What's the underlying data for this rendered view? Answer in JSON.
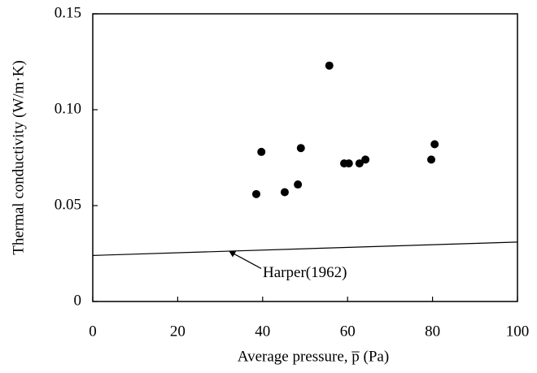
{
  "chart_data": {
    "type": "scatter",
    "xlabel": "Average pressure, p̅ (Pa)",
    "ylabel": "Thermal conductivity (W/m·K)",
    "x": [
      38.5,
      39.7,
      45.2,
      48.3,
      49.0,
      55.7,
      59.2,
      60.3,
      62.8,
      64.2,
      79.7,
      80.5
    ],
    "values": [
      0.056,
      0.078,
      0.057,
      0.061,
      0.08,
      0.123,
      0.072,
      0.072,
      0.072,
      0.074,
      0.074,
      0.082
    ],
    "color": "#000000",
    "line": {
      "x": [
        0,
        100
      ],
      "values": [
        0.024,
        0.031
      ]
    },
    "annotation": {
      "text": "Harper(1962)",
      "x": 32,
      "y": 0.0265
    },
    "xlim": [
      0,
      100
    ],
    "xticks": [
      0,
      20,
      40,
      60,
      80,
      100
    ],
    "ylim": [
      0,
      0.15
    ],
    "yticks": [
      0,
      0.05,
      {
        "value": 0.1,
        "label": "0.10"
      },
      0.15
    ]
  }
}
